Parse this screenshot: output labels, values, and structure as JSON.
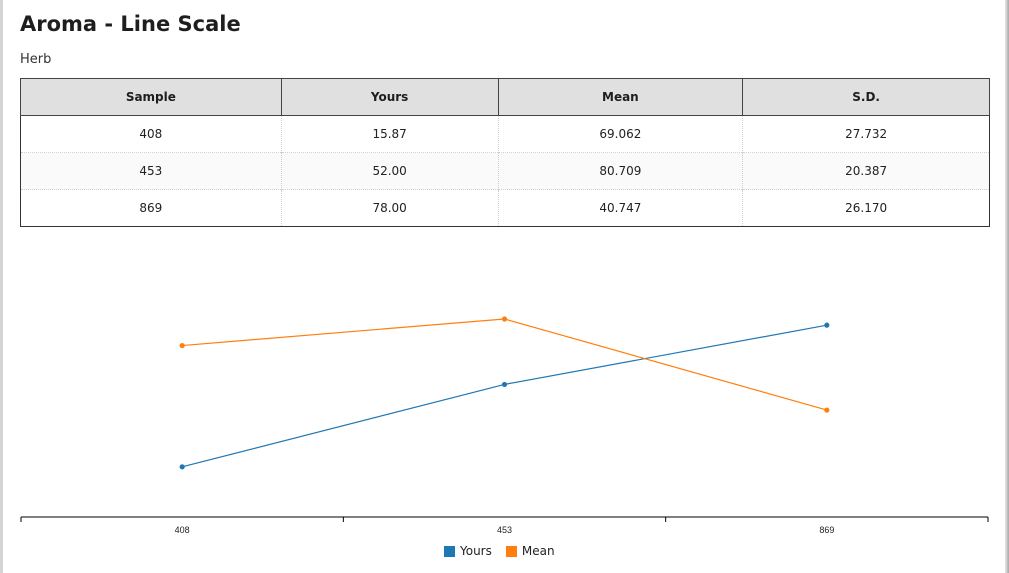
{
  "page": {
    "title": "Aroma - Line Scale",
    "subtitle": "Herb"
  },
  "table": {
    "headers": [
      "Sample",
      "Yours",
      "Mean",
      "S.D."
    ],
    "rows": [
      [
        "408",
        "15.87",
        "69.062",
        "27.732"
      ],
      [
        "453",
        "52.00",
        "80.709",
        "20.387"
      ],
      [
        "869",
        "78.00",
        "40.747",
        "26.170"
      ]
    ]
  },
  "chart_data": {
    "type": "line",
    "categories": [
      "408",
      "453",
      "869"
    ],
    "series": [
      {
        "name": "Yours",
        "values": [
          15.87,
          52.0,
          78.0
        ],
        "color": "#1f77b4"
      },
      {
        "name": "Mean",
        "values": [
          69.062,
          80.709,
          40.747
        ],
        "color": "#ff7f0e"
      }
    ],
    "ylim": [
      0,
      100
    ],
    "grid": false,
    "legend": "bottom"
  }
}
